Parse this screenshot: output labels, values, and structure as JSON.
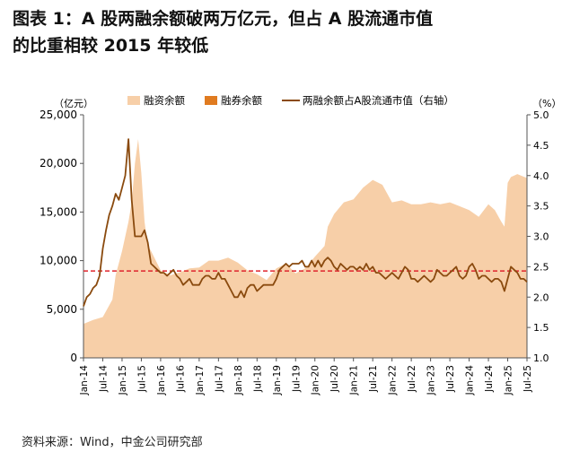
{
  "title": {
    "line1": "图表 1：A 股两融余额破两万亿元，但占 A 股流通市值",
    "line2": "的比重相较 2015 年较低"
  },
  "source": "资料来源：Wind，中金公司研究部",
  "colors": {
    "margin_fill": "#f7cfa8",
    "short_bar": "#e07b20",
    "ratio_line": "#8a4a0e",
    "reference_line": "#e0242c"
  },
  "chart_data": {
    "type": "area",
    "left_axis": {
      "unit_label": "（亿元）",
      "ticks": [
        "0",
        "5,000",
        "10,000",
        "15,000",
        "20,000",
        "25,000"
      ],
      "ylim": [
        0,
        25000
      ]
    },
    "right_axis": {
      "unit_label": "（%）",
      "ticks": [
        "1.0",
        "1.5",
        "2.0",
        "2.5",
        "3.0",
        "3.5",
        "4.0",
        "4.5",
        "5.0"
      ],
      "ylim": [
        1.0,
        5.0
      ]
    },
    "x_ticks": [
      "Jan-14",
      "Jul-14",
      "Jan-15",
      "Jul-15",
      "Jan-16",
      "Jul-16",
      "Jan-17",
      "Jul-17",
      "Jan-18",
      "Jul-18",
      "Jan-19",
      "Jul-19",
      "Jan-20",
      "Jul-20",
      "Jan-21",
      "Jul-21",
      "Jan-22",
      "Jul-22",
      "Jan-23",
      "Jul-23",
      "Jan-24",
      "Jul-24",
      "Jan-25",
      "Jul-25"
    ],
    "legend": [
      "融资余额",
      "融券余额",
      "两融余额占A股流通市值（右轴）"
    ],
    "reference_line_value_pct": 2.43,
    "series": [
      {
        "name": "融资余额",
        "axis": "left",
        "months": [
          0,
          3,
          6,
          9,
          10,
          12,
          14,
          15,
          16,
          17,
          18,
          19,
          20,
          21,
          24,
          27,
          30,
          33,
          36,
          39,
          42,
          45,
          48,
          51,
          54,
          57,
          60,
          63,
          66,
          69,
          72,
          75,
          76,
          78,
          81,
          84,
          87,
          90,
          93,
          96,
          99,
          102,
          105,
          108,
          111,
          114,
          117,
          120,
          123,
          126,
          128,
          130,
          131,
          132,
          133,
          135,
          138
        ],
        "values": [
          3500,
          3900,
          4200,
          6000,
          8500,
          11000,
          14000,
          16000,
          20000,
          22500,
          19000,
          14000,
          11500,
          11000,
          9000,
          8500,
          8800,
          9200,
          9300,
          10000,
          10000,
          10300,
          9800,
          9000,
          8600,
          8000,
          9200,
          9700,
          8700,
          9200,
          10400,
          11500,
          13500,
          14800,
          16000,
          16300,
          17500,
          18300,
          17800,
          16000,
          16200,
          15800,
          15800,
          16000,
          15800,
          16000,
          15600,
          15200,
          14500,
          15800,
          15200,
          14000,
          13500,
          18000,
          18600,
          18900,
          18500
        ]
      },
      {
        "name": "两融余额占A股流通市值（右轴）",
        "axis": "right",
        "months": [
          0,
          1,
          2,
          3,
          4,
          5,
          6,
          7,
          8,
          9,
          10,
          11,
          12,
          13,
          14,
          15,
          16,
          17,
          18,
          19,
          20,
          21,
          22,
          23,
          24,
          25,
          26,
          27,
          28,
          29,
          30,
          31,
          32,
          33,
          34,
          35,
          36,
          37,
          38,
          39,
          40,
          41,
          42,
          43,
          44,
          45,
          46,
          47,
          48,
          49,
          50,
          51,
          52,
          53,
          54,
          55,
          56,
          57,
          58,
          59,
          60,
          61,
          62,
          63,
          64,
          65,
          66,
          67,
          68,
          69,
          70,
          71,
          72,
          73,
          74,
          75,
          76,
          77,
          78,
          79,
          80,
          81,
          82,
          83,
          84,
          85,
          86,
          87,
          88,
          89,
          90,
          91,
          92,
          93,
          94,
          95,
          96,
          97,
          98,
          99,
          100,
          101,
          102,
          103,
          104,
          105,
          106,
          107,
          108,
          109,
          110,
          111,
          112,
          113,
          114,
          115,
          116,
          117,
          118,
          119,
          120,
          121,
          122,
          123,
          124,
          125,
          126,
          127,
          128,
          129,
          130,
          131,
          132,
          133,
          134,
          135,
          136,
          137,
          138
        ],
        "values": [
          1.85,
          2.0,
          2.05,
          2.15,
          2.2,
          2.35,
          2.8,
          3.1,
          3.35,
          3.5,
          3.7,
          3.6,
          3.8,
          4.0,
          4.6,
          3.6,
          3.0,
          3.0,
          3.0,
          3.1,
          2.9,
          2.55,
          2.5,
          2.45,
          2.4,
          2.4,
          2.35,
          2.4,
          2.45,
          2.35,
          2.3,
          2.2,
          2.25,
          2.3,
          2.2,
          2.2,
          2.2,
          2.3,
          2.35,
          2.35,
          2.3,
          2.3,
          2.4,
          2.3,
          2.3,
          2.2,
          2.1,
          2.0,
          2.0,
          2.1,
          2.0,
          2.15,
          2.2,
          2.2,
          2.1,
          2.15,
          2.2,
          2.2,
          2.2,
          2.2,
          2.3,
          2.45,
          2.5,
          2.55,
          2.5,
          2.55,
          2.55,
          2.55,
          2.6,
          2.5,
          2.5,
          2.6,
          2.5,
          2.6,
          2.5,
          2.6,
          2.65,
          2.6,
          2.5,
          2.45,
          2.55,
          2.5,
          2.45,
          2.5,
          2.5,
          2.45,
          2.5,
          2.45,
          2.55,
          2.45,
          2.5,
          2.4,
          2.4,
          2.35,
          2.3,
          2.35,
          2.4,
          2.35,
          2.3,
          2.4,
          2.5,
          2.45,
          2.3,
          2.3,
          2.25,
          2.3,
          2.35,
          2.3,
          2.25,
          2.3,
          2.45,
          2.4,
          2.35,
          2.35,
          2.4,
          2.45,
          2.5,
          2.35,
          2.3,
          2.35,
          2.5,
          2.55,
          2.45,
          2.3,
          2.35,
          2.35,
          2.3,
          2.25,
          2.3,
          2.3,
          2.25,
          2.1,
          2.3,
          2.5,
          2.45,
          2.4,
          2.3,
          2.3,
          2.25
        ]
      }
    ]
  }
}
